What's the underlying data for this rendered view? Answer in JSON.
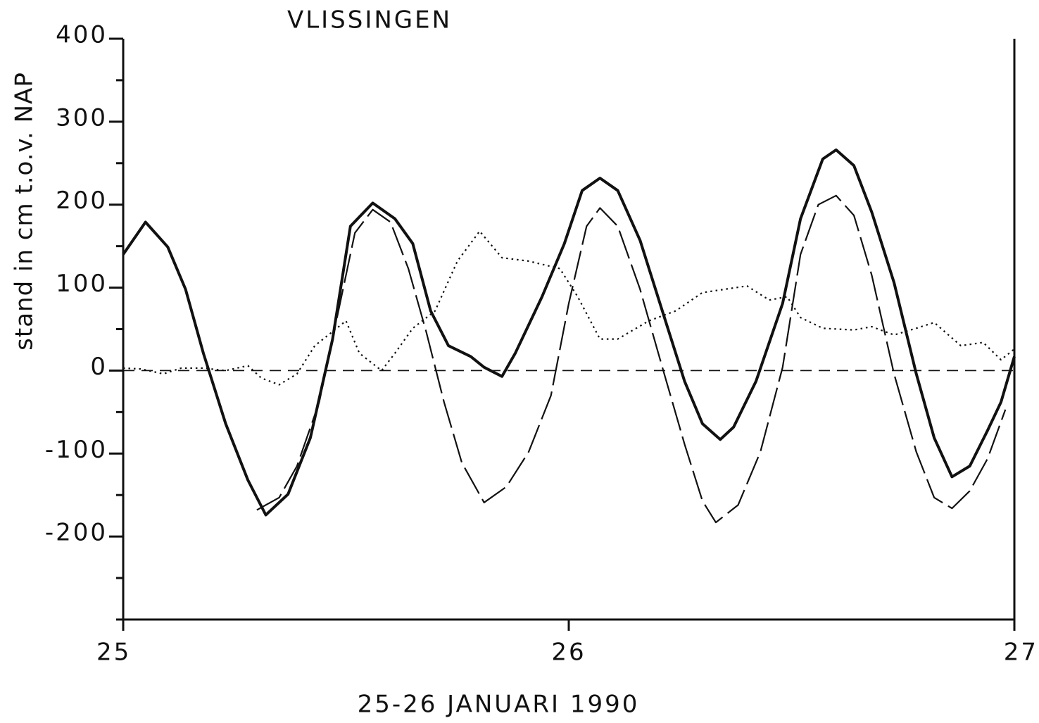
{
  "chart_data": {
    "type": "line",
    "title": "VLISSINGEN",
    "x_label": "25-26 JANUARI 1990",
    "y_label": "stand in cm t.o.v. NAP",
    "xlim": [
      25,
      27
    ],
    "xticks": [
      25,
      26,
      27
    ],
    "ylim": [
      -300,
      400
    ],
    "yticks": [
      -200,
      -100,
      0,
      100,
      200,
      300,
      400
    ],
    "yminorticks": [
      -300,
      -250,
      -150,
      -50,
      50,
      150,
      250,
      350
    ],
    "series": [
      {
        "color": "#111",
        "style": "solid",
        "x": [
          25.0,
          25.05,
          25.1,
          25.14,
          25.18,
          25.23,
          25.28,
          25.32,
          25.37,
          25.42,
          25.47,
          25.51,
          25.56,
          25.61,
          25.65,
          25.69,
          25.73,
          25.78,
          25.81,
          25.85,
          25.88,
          25.94,
          25.99,
          26.03,
          26.07,
          26.11,
          26.16,
          26.21,
          26.26,
          26.3,
          26.34,
          26.37,
          26.42,
          26.48,
          26.52,
          26.57,
          26.6,
          26.64,
          26.68,
          26.73,
          26.78,
          26.82,
          26.86,
          26.9,
          26.94,
          26.97,
          27.0
        ],
        "values": [
          140,
          179,
          149,
          98,
          21,
          -64,
          -132,
          -174,
          -149,
          -81,
          38,
          174,
          202,
          183,
          153,
          72,
          30,
          17,
          4,
          -7,
          21,
          89,
          153,
          217,
          232,
          217,
          157,
          72,
          -13,
          -64,
          -83,
          -68,
          -13,
          81,
          183,
          255,
          266,
          247,
          191,
          106,
          -4,
          -81,
          -128,
          -115,
          -72,
          -38,
          17
        ]
      },
      {
        "color": "#111",
        "style": "longdash",
        "x": [
          25.3,
          25.35,
          25.39,
          25.44,
          25.48,
          25.52,
          25.56,
          25.6,
          25.64,
          25.68,
          25.72,
          25.76,
          25.81,
          25.86,
          25.91,
          25.96,
          26.0,
          26.04,
          26.07,
          26.11,
          26.16,
          26.21,
          26.26,
          26.3,
          26.33,
          26.38,
          26.43,
          26.48,
          26.52,
          26.56,
          26.6,
          26.64,
          26.68,
          26.73,
          26.78,
          26.82,
          26.86,
          26.9,
          26.94,
          26.98
        ],
        "values": [
          -168,
          -153,
          -115,
          -38,
          64,
          166,
          194,
          179,
          123,
          47,
          -38,
          -111,
          -159,
          -140,
          -98,
          -30,
          81,
          174,
          196,
          174,
          98,
          4,
          -89,
          -157,
          -183,
          -162,
          -98,
          4,
          140,
          200,
          211,
          187,
          115,
          -4,
          -98,
          -153,
          -166,
          -145,
          -106,
          -47
        ]
      },
      {
        "color": "#111",
        "style": "dotted",
        "x": [
          25.0,
          25.04,
          25.09,
          25.13,
          25.18,
          25.23,
          25.28,
          25.31,
          25.35,
          25.39,
          25.43,
          25.47,
          25.5,
          25.53,
          25.58,
          25.61,
          25.65,
          25.7,
          25.75,
          25.8,
          25.85,
          25.91,
          25.98,
          26.02,
          26.07,
          26.11,
          26.18,
          26.24,
          26.3,
          26.35,
          26.4,
          26.45,
          26.49,
          26.52,
          26.57,
          26.64,
          26.68,
          26.73,
          26.78,
          26.82,
          26.88,
          26.93,
          26.97,
          27.0
        ],
        "values": [
          3,
          2,
          -4,
          3,
          3,
          0,
          6,
          -9,
          -17,
          -4,
          30,
          47,
          60,
          21,
          0,
          21,
          51,
          72,
          132,
          168,
          136,
          132,
          123,
          89,
          38,
          38,
          60,
          72,
          94,
          98,
          102,
          85,
          89,
          64,
          51,
          49,
          53,
          43,
          51,
          58,
          30,
          34,
          13,
          26
        ]
      },
      {
        "color": "#111",
        "style": "dashed",
        "x": [
          25,
          27
        ],
        "values": [
          0,
          0
        ]
      }
    ]
  }
}
